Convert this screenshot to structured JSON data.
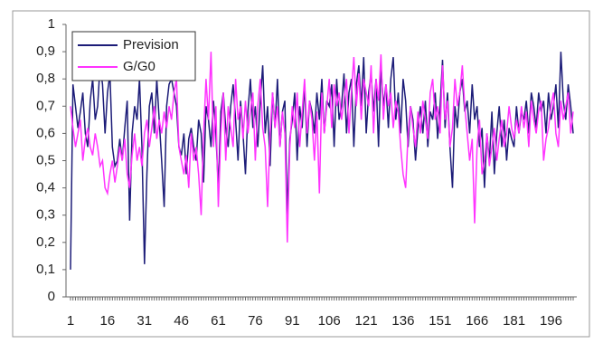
{
  "chart_data": {
    "type": "line",
    "x": [
      1,
      2,
      3,
      4,
      5,
      6,
      7,
      8,
      9,
      10,
      11,
      12,
      13,
      14,
      15,
      16,
      17,
      18,
      19,
      20,
      21,
      22,
      23,
      24,
      25,
      26,
      27,
      28,
      29,
      30,
      31,
      32,
      33,
      34,
      35,
      36,
      37,
      38,
      39,
      40,
      41,
      42,
      43,
      44,
      45,
      46,
      47,
      48,
      49,
      50,
      51,
      52,
      53,
      54,
      55,
      56,
      57,
      58,
      59,
      60,
      61,
      62,
      63,
      64,
      65,
      66,
      67,
      68,
      69,
      70,
      71,
      72,
      73,
      74,
      75,
      76,
      77,
      78,
      79,
      80,
      81,
      82,
      83,
      84,
      85,
      86,
      87,
      88,
      89,
      90,
      91,
      92,
      93,
      94,
      95,
      96,
      97,
      98,
      99,
      100,
      101,
      102,
      103,
      104,
      105,
      106,
      107,
      108,
      109,
      110,
      111,
      112,
      113,
      114,
      115,
      116,
      117,
      118,
      119,
      120,
      121,
      122,
      123,
      124,
      125,
      126,
      127,
      128,
      129,
      130,
      131,
      132,
      133,
      134,
      135,
      136,
      137,
      138,
      139,
      140,
      141,
      142,
      143,
      144,
      145,
      146,
      147,
      148,
      149,
      150,
      151,
      152,
      153,
      154,
      155,
      156,
      157,
      158,
      159,
      160,
      161,
      162,
      163,
      164,
      165,
      166,
      167,
      168,
      169,
      170,
      171,
      172,
      173,
      174,
      175,
      176,
      177,
      178,
      179,
      180,
      181,
      182,
      183,
      184,
      185,
      186,
      187,
      188,
      189,
      190,
      191,
      192,
      193,
      194,
      195,
      196,
      197,
      198,
      199,
      200,
      201,
      202,
      203,
      204,
      205
    ],
    "xlim": [
      1,
      205
    ],
    "xticks": [
      1,
      16,
      31,
      46,
      61,
      76,
      91,
      106,
      121,
      136,
      151,
      166,
      181,
      196
    ],
    "ylim": [
      0,
      1
    ],
    "yticks": [
      0,
      {
        "value": 0.1,
        "label": "0,1"
      },
      {
        "value": 0.2,
        "label": "0,2"
      },
      {
        "value": 0.3,
        "label": "0,3"
      },
      {
        "value": 0.4,
        "label": "0,4"
      },
      {
        "value": 0.5,
        "label": "0,5"
      },
      {
        "value": 0.6,
        "label": "0,6"
      },
      {
        "value": 0.7,
        "label": "0,7"
      },
      {
        "value": 0.8,
        "label": "0,8"
      },
      {
        "value": 0.9,
        "label": "0,9"
      },
      1
    ],
    "legend": "upper-left",
    "series": [
      {
        "name": "Prevision",
        "color": "#1c1c78",
        "values": [
          0.1,
          0.78,
          0.7,
          0.62,
          0.68,
          0.75,
          0.6,
          0.55,
          0.72,
          0.8,
          0.65,
          0.7,
          0.85,
          0.78,
          0.6,
          0.75,
          0.82,
          0.55,
          0.48,
          0.5,
          0.58,
          0.5,
          0.62,
          0.72,
          0.28,
          0.6,
          0.7,
          0.65,
          0.8,
          0.55,
          0.12,
          0.45,
          0.7,
          0.75,
          0.6,
          0.8,
          0.65,
          0.5,
          0.33,
          0.7,
          0.78,
          0.8,
          0.75,
          0.7,
          0.55,
          0.52,
          0.6,
          0.45,
          0.58,
          0.62,
          0.55,
          0.5,
          0.65,
          0.6,
          0.42,
          0.7,
          0.65,
          0.55,
          0.72,
          0.6,
          0.4,
          0.68,
          0.75,
          0.62,
          0.55,
          0.7,
          0.78,
          0.65,
          0.5,
          0.72,
          0.6,
          0.45,
          0.68,
          0.8,
          0.62,
          0.7,
          0.55,
          0.72,
          0.85,
          0.6,
          0.7,
          0.48,
          0.75,
          0.62,
          0.8,
          0.55,
          0.68,
          0.72,
          0.3,
          0.58,
          0.65,
          0.75,
          0.5,
          0.7,
          0.62,
          0.78,
          0.55,
          0.72,
          0.68,
          0.6,
          0.75,
          0.65,
          0.8,
          0.6,
          0.72,
          0.7,
          0.78,
          0.55,
          0.8,
          0.65,
          0.7,
          0.82,
          0.6,
          0.75,
          0.8,
          0.55,
          0.78,
          0.85,
          0.7,
          0.88,
          0.6,
          0.75,
          0.82,
          0.68,
          0.8,
          0.55,
          0.85,
          0.7,
          0.78,
          0.62,
          0.8,
          0.88,
          0.65,
          0.75,
          0.6,
          0.8,
          0.72,
          0.55,
          0.7,
          0.65,
          0.5,
          0.62,
          0.7,
          0.6,
          0.72,
          0.55,
          0.68,
          0.65,
          0.75,
          0.58,
          0.7,
          0.87,
          0.62,
          0.75,
          0.55,
          0.4,
          0.7,
          0.62,
          0.75,
          0.8,
          0.68,
          0.72,
          0.6,
          0.78,
          0.65,
          0.7,
          0.55,
          0.62,
          0.4,
          0.6,
          0.5,
          0.68,
          0.45,
          0.6,
          0.7,
          0.55,
          0.65,
          0.5,
          0.62,
          0.58,
          0.55,
          0.7,
          0.6,
          0.68,
          0.65,
          0.72,
          0.6,
          0.75,
          0.7,
          0.62,
          0.75,
          0.68,
          0.72,
          0.6,
          0.75,
          0.65,
          0.7,
          0.78,
          0.62,
          0.9,
          0.72,
          0.65,
          0.78,
          0.7,
          0.6
        ]
      },
      {
        "name": "G/G0",
        "color": "#ff33ff",
        "values": [
          0.7,
          0.62,
          0.55,
          0.6,
          0.65,
          0.5,
          0.58,
          0.62,
          0.55,
          0.52,
          0.6,
          0.55,
          0.48,
          0.5,
          0.4,
          0.38,
          0.45,
          0.5,
          0.42,
          0.48,
          0.55,
          0.5,
          0.58,
          0.45,
          0.4,
          0.52,
          0.6,
          0.5,
          0.55,
          0.48,
          0.6,
          0.65,
          0.55,
          0.62,
          0.7,
          0.58,
          0.65,
          0.6,
          0.68,
          0.62,
          0.7,
          0.65,
          0.75,
          0.8,
          0.55,
          0.5,
          0.45,
          0.52,
          0.4,
          0.6,
          0.5,
          0.55,
          0.45,
          0.3,
          0.6,
          0.8,
          0.65,
          0.9,
          0.55,
          0.7,
          0.33,
          0.6,
          0.75,
          0.5,
          0.7,
          0.62,
          0.55,
          0.8,
          0.65,
          0.7,
          0.58,
          0.72,
          0.6,
          0.68,
          0.75,
          0.5,
          0.7,
          0.8,
          0.62,
          0.55,
          0.33,
          0.6,
          0.75,
          0.62,
          0.7,
          0.55,
          0.68,
          0.6,
          0.2,
          0.55,
          0.7,
          0.62,
          0.75,
          0.55,
          0.68,
          0.8,
          0.6,
          0.72,
          0.65,
          0.5,
          0.68,
          0.38,
          0.75,
          0.6,
          0.7,
          0.8,
          0.62,
          0.78,
          0.7,
          0.75,
          0.65,
          0.72,
          0.8,
          0.6,
          0.75,
          0.88,
          0.7,
          0.82,
          0.65,
          0.8,
          0.75,
          0.7,
          0.85,
          0.6,
          0.8,
          0.72,
          0.89,
          0.65,
          0.78,
          0.7,
          0.75,
          0.62,
          0.72,
          0.68,
          0.55,
          0.45,
          0.4,
          0.6,
          0.7,
          0.62,
          0.55,
          0.68,
          0.6,
          0.72,
          0.65,
          0.58,
          0.75,
          0.8,
          0.65,
          0.7,
          0.6,
          0.85,
          0.65,
          0.72,
          0.55,
          0.62,
          0.8,
          0.7,
          0.75,
          0.85,
          0.7,
          0.6,
          0.5,
          0.58,
          0.27,
          0.55,
          0.65,
          0.45,
          0.5,
          0.6,
          0.48,
          0.55,
          0.62,
          0.5,
          0.58,
          0.65,
          0.55,
          0.6,
          0.7,
          0.62,
          0.58,
          0.65,
          0.6,
          0.7,
          0.62,
          0.68,
          0.55,
          0.72,
          0.65,
          0.6,
          0.68,
          0.72,
          0.5,
          0.58,
          0.62,
          0.7,
          0.75,
          0.6,
          0.55,
          0.72,
          0.65,
          0.7,
          0.75,
          0.6,
          0.68
        ]
      }
    ]
  }
}
